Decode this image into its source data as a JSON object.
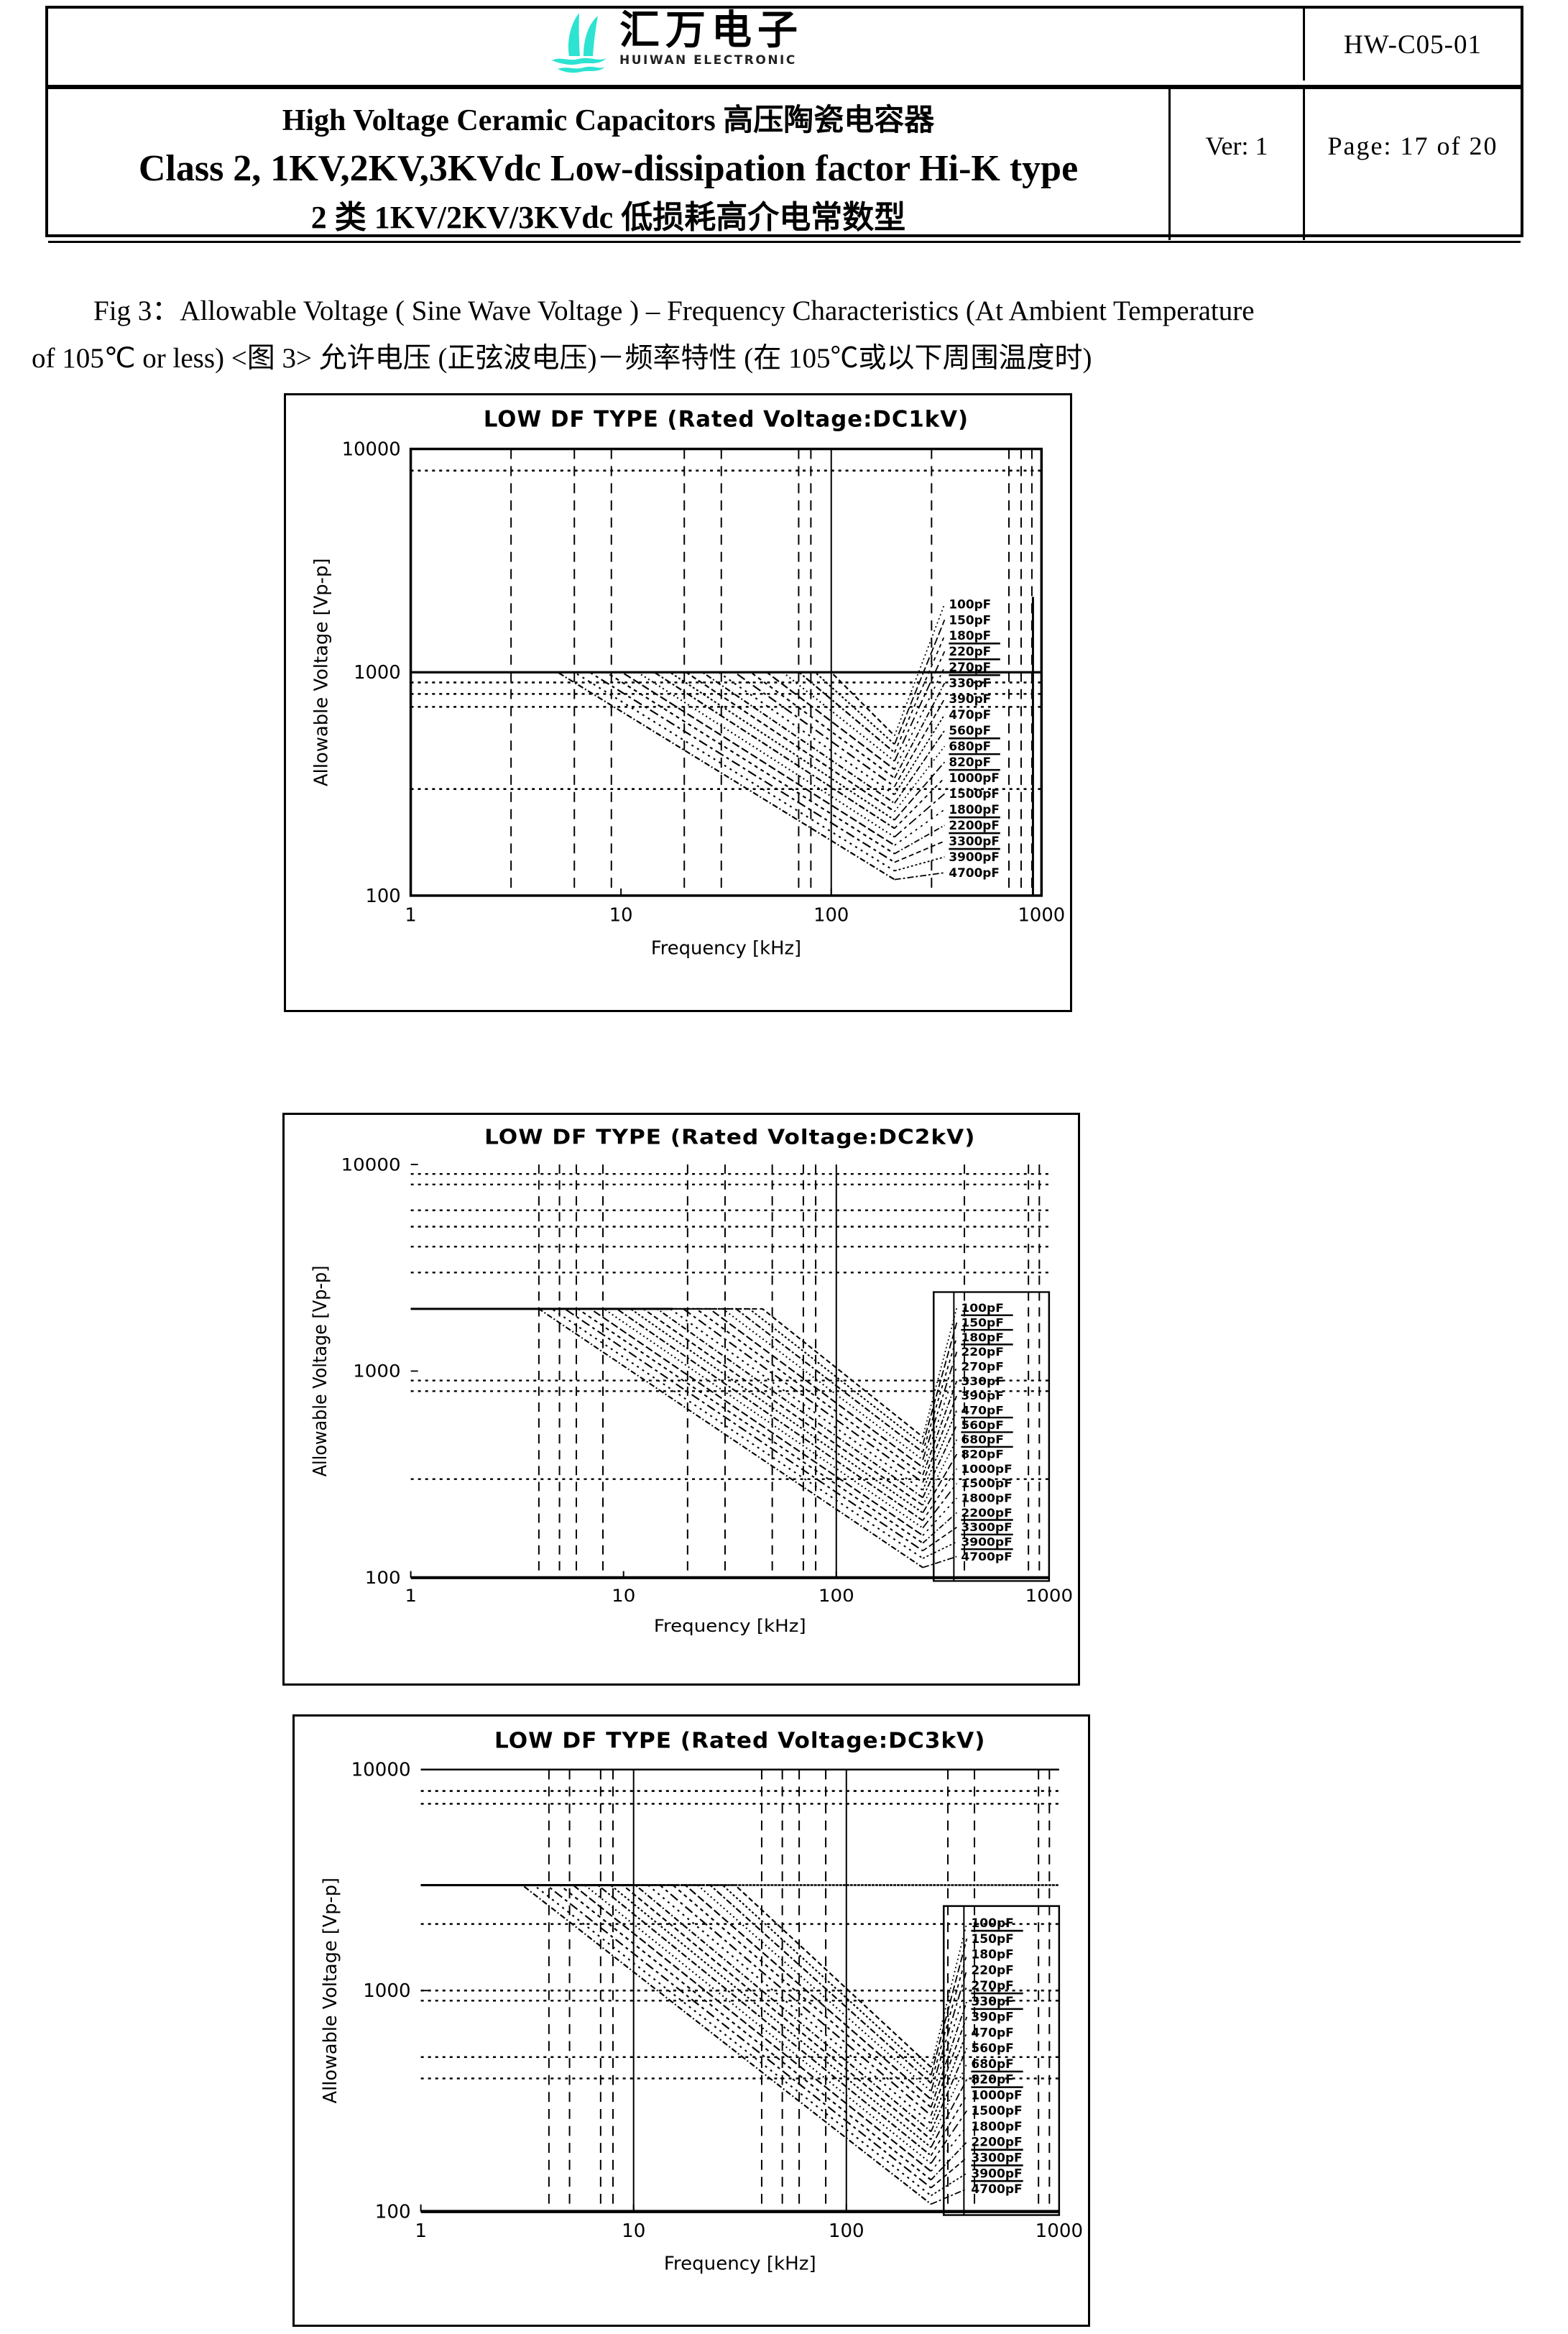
{
  "header": {
    "logo_chinese": "汇万电子",
    "logo_subtitle": "HUIWAN ELECTRONIC",
    "doc_number": "HW-C05-01",
    "title_line1": "High Voltage Ceramic Capacitors 高压陶瓷电容器",
    "title_line2": "Class 2, 1KV,2KV,3KVdc Low-dissipation factor Hi-K type",
    "title_line3": "2 类 1KV/2KV/3KVdc 低损耗高介电常数型",
    "version_label": "Ver: 1",
    "page_label": "Page: 17 of 20"
  },
  "caption": {
    "line1": "Fig 3：Allowable Voltage ( Sine Wave Voltage ) – Frequency Characteristics (At Ambient Temperature",
    "line2": "of 105℃ or less) <图 3> 允许电压 (正弦波电压)－频率特性 (在 105℃或以下周围温度时)"
  },
  "colors": {
    "ink": "#000000",
    "paper": "#ffffff",
    "logo_teal": "#2de3d2"
  },
  "chart_data": [
    {
      "type": "line",
      "title": "LOW DF TYPE  (Rated Voltage:DC1kV)",
      "xlabel": "Frequency [kHz]",
      "ylabel": "Allowable Voltage [Vp-p]",
      "x_range_khz": [
        1,
        1000
      ],
      "y_range_vpp": [
        100,
        10000
      ],
      "x_ticks": [
        1,
        10,
        100,
        1000
      ],
      "y_ticks": [
        10000,
        1000,
        100
      ],
      "rated_voltage_flat_vpp": 1000,
      "flat_solid_end_khz": 1000,
      "curve_end_khz": 200,
      "frame": "full",
      "right_rule": true,
      "legend_box": false,
      "grid": {
        "v_solid": [
          100
        ],
        "v_dashed": [
          3,
          6,
          9,
          20,
          30,
          70,
          80,
          300,
          700,
          800,
          900
        ],
        "h_solid": [
          1000
        ],
        "h_dashed": [
          8000,
          900,
          800,
          700,
          300
        ]
      },
      "underlined_labels": [
        2,
        3,
        4,
        8,
        9,
        10,
        13,
        14,
        15
      ],
      "series": [
        {
          "label": "100pF",
          "corner_khz": 100,
          "end_v": 520
        },
        {
          "label": "150pF",
          "corner_khz": 83.8,
          "end_v": 476
        },
        {
          "label": "180pF",
          "corner_khz": 70.3,
          "end_v": 437
        },
        {
          "label": "220pF",
          "corner_khz": 58.9,
          "end_v": 400
        },
        {
          "label": "270pF",
          "corner_khz": 49.4,
          "end_v": 367
        },
        {
          "label": "330pF",
          "corner_khz": 41.4,
          "end_v": 336
        },
        {
          "label": "390pF",
          "corner_khz": 34.7,
          "end_v": 308
        },
        {
          "label": "470pF",
          "corner_khz": 29.1,
          "end_v": 283
        },
        {
          "label": "560pF",
          "corner_khz": 24.4,
          "end_v": 259
        },
        {
          "label": "680pF",
          "corner_khz": 20.4,
          "end_v": 238
        },
        {
          "label": "820pF",
          "corner_khz": 17.1,
          "end_v": 218
        },
        {
          "label": "1000pF",
          "corner_khz": 14.4,
          "end_v": 200
        },
        {
          "label": "1500pF",
          "corner_khz": 12.0,
          "end_v": 183
        },
        {
          "label": "1800pF",
          "corner_khz": 10.1,
          "end_v": 168
        },
        {
          "label": "2200pF",
          "corner_khz": 8.5,
          "end_v": 154
        },
        {
          "label": "3300pF",
          "corner_khz": 7.1,
          "end_v": 141
        },
        {
          "label": "3900pF",
          "corner_khz": 6.0,
          "end_v": 129
        },
        {
          "label": "4700pF",
          "corner_khz": 5.0,
          "end_v": 118
        }
      ]
    },
    {
      "type": "line",
      "title": "LOW DF TYPE  (Rated Voltage:DC2kV)",
      "xlabel": "Frequency [kHz]",
      "ylabel": "Allowable Voltage [Vp-p]",
      "x_range_khz": [
        1,
        1000
      ],
      "y_range_vpp": [
        100,
        10000
      ],
      "x_ticks": [
        1,
        10,
        100,
        1000
      ],
      "y_ticks": [
        10000,
        1000,
        100
      ],
      "rated_voltage_flat_vpp": 2000,
      "flat_solid_end_khz": 17,
      "curve_end_khz": 255,
      "frame": "bottom",
      "right_rule": false,
      "legend_box": true,
      "grid": {
        "v_solid": [
          100
        ],
        "v_dashed": [
          4,
          5,
          6,
          8,
          20,
          30,
          50,
          70,
          80,
          400,
          800,
          900
        ],
        "h_solid": [],
        "h_dashed": [
          9000,
          8000,
          6000,
          5000,
          4000,
          3000,
          900,
          800,
          300
        ]
      },
      "underlined_labels": [
        0,
        1,
        2,
        7,
        8,
        9,
        14,
        15,
        16
      ],
      "series": [
        {
          "label": "100pF",
          "corner_khz": 45,
          "end_v": 480
        },
        {
          "label": "150pF",
          "corner_khz": 39.0,
          "end_v": 441
        },
        {
          "label": "180pF",
          "corner_khz": 33.8,
          "end_v": 405
        },
        {
          "label": "220pF",
          "corner_khz": 29.3,
          "end_v": 372
        },
        {
          "label": "270pF",
          "corner_khz": 25.4,
          "end_v": 342
        },
        {
          "label": "330pF",
          "corner_khz": 22.0,
          "end_v": 314
        },
        {
          "label": "390pF",
          "corner_khz": 19.1,
          "end_v": 289
        },
        {
          "label": "470pF",
          "corner_khz": 16.6,
          "end_v": 265
        },
        {
          "label": "560pF",
          "corner_khz": 14.4,
          "end_v": 244
        },
        {
          "label": "680pF",
          "corner_khz": 12.4,
          "end_v": 224
        },
        {
          "label": "820pF",
          "corner_khz": 10.8,
          "end_v": 206
        },
        {
          "label": "1000pF",
          "corner_khz": 9.3,
          "end_v": 189
        },
        {
          "label": "1500pF",
          "corner_khz": 8.1,
          "end_v": 174
        },
        {
          "label": "1800pF",
          "corner_khz": 7.0,
          "end_v": 160
        },
        {
          "label": "2200pF",
          "corner_khz": 6.1,
          "end_v": 147
        },
        {
          "label": "3300pF",
          "corner_khz": 5.3,
          "end_v": 135
        },
        {
          "label": "3900pF",
          "corner_khz": 4.6,
          "end_v": 124
        },
        {
          "label": "4700pF",
          "corner_khz": 4.0,
          "end_v": 112
        }
      ]
    },
    {
      "type": "line",
      "title": "LOW DF TYPE (Rated Voltage:DC3kV)",
      "xlabel": "Frequency [kHz]",
      "ylabel": "Allowable Voltage [Vp-p]",
      "x_range_khz": [
        1,
        1000
      ],
      "y_range_vpp": [
        100,
        10000
      ],
      "x_ticks": [
        1,
        10,
        100,
        1000
      ],
      "y_ticks": [
        10000,
        1000,
        100
      ],
      "rated_voltage_flat_vpp": 3000,
      "flat_solid_end_khz": 10,
      "curve_end_khz": 250,
      "frame": "topbottom",
      "right_rule": false,
      "legend_box": true,
      "grid": {
        "v_solid": [
          10,
          100
        ],
        "v_dashed": [
          4,
          5,
          7,
          8,
          40,
          50,
          60,
          80,
          300,
          400,
          800,
          900
        ],
        "h_solid": [],
        "h_dashed": [
          8000,
          7000,
          3000,
          2000,
          1000,
          900,
          500,
          400
        ],
        "h_dashed_from_flat_end": [
          3000
        ]
      },
      "underlined_labels": [
        0,
        4,
        5,
        9,
        10,
        14,
        15,
        16
      ],
      "series": [
        {
          "label": "100pF",
          "corner_khz": 30,
          "end_v": 450
        },
        {
          "label": "150pF",
          "corner_khz": 26.2,
          "end_v": 414
        },
        {
          "label": "180pF",
          "corner_khz": 22.9,
          "end_v": 381
        },
        {
          "label": "220pF",
          "corner_khz": 20.0,
          "end_v": 350
        },
        {
          "label": "270pF",
          "corner_khz": 17.5,
          "end_v": 322
        },
        {
          "label": "330pF",
          "corner_khz": 15.3,
          "end_v": 296
        },
        {
          "label": "390pF",
          "corner_khz": 13.3,
          "end_v": 272
        },
        {
          "label": "470pF",
          "corner_khz": 11.7,
          "end_v": 250
        },
        {
          "label": "560pF",
          "corner_khz": 10.2,
          "end_v": 230
        },
        {
          "label": "680pF",
          "corner_khz": 8.9,
          "end_v": 212
        },
        {
          "label": "820pF",
          "corner_khz": 7.8,
          "end_v": 195
        },
        {
          "label": "1000pF",
          "corner_khz": 6.8,
          "end_v": 179
        },
        {
          "label": "1500pF",
          "corner_khz": 5.9,
          "end_v": 165
        },
        {
          "label": "1800pF",
          "corner_khz": 5.2,
          "end_v": 152
        },
        {
          "label": "2200pF",
          "corner_khz": 4.5,
          "end_v": 139
        },
        {
          "label": "3300pF",
          "corner_khz": 3.9,
          "end_v": 128
        },
        {
          "label": "3900pF",
          "corner_khz": 3.4,
          "end_v": 118
        },
        {
          "label": "4700pF",
          "corner_khz": 3.0,
          "end_v": 108
        }
      ]
    }
  ]
}
